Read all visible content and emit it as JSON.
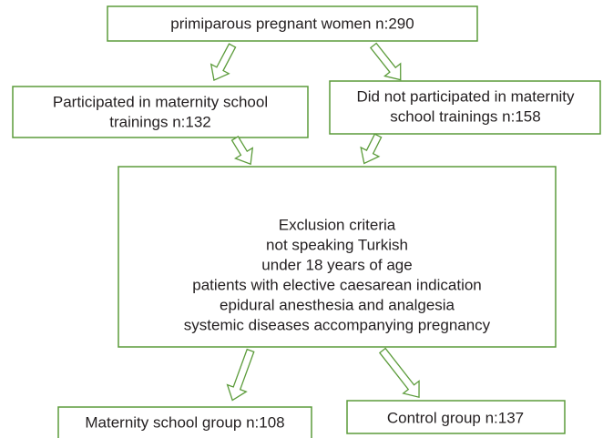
{
  "nodes": [
    {
      "lines": [
        "primiparous pregnant women n:290"
      ]
    },
    {
      "lines": [
        "Participated in maternity school",
        "trainings n:132"
      ]
    },
    {
      "lines": [
        "Did not participated in maternity",
        "school trainings n:158"
      ]
    },
    {
      "lines": [
        "Exclusion criteria",
        "not speaking Turkish",
        "under 18 years of age",
        "patients with elective caesarean indication",
        "epidural anesthesia and analgesia",
        "systemic diseases accompanying pregnancy"
      ]
    },
    {
      "lines": [
        "Maternity school group n:108"
      ]
    },
    {
      "lines": [
        "Control group n:137"
      ]
    }
  ]
}
